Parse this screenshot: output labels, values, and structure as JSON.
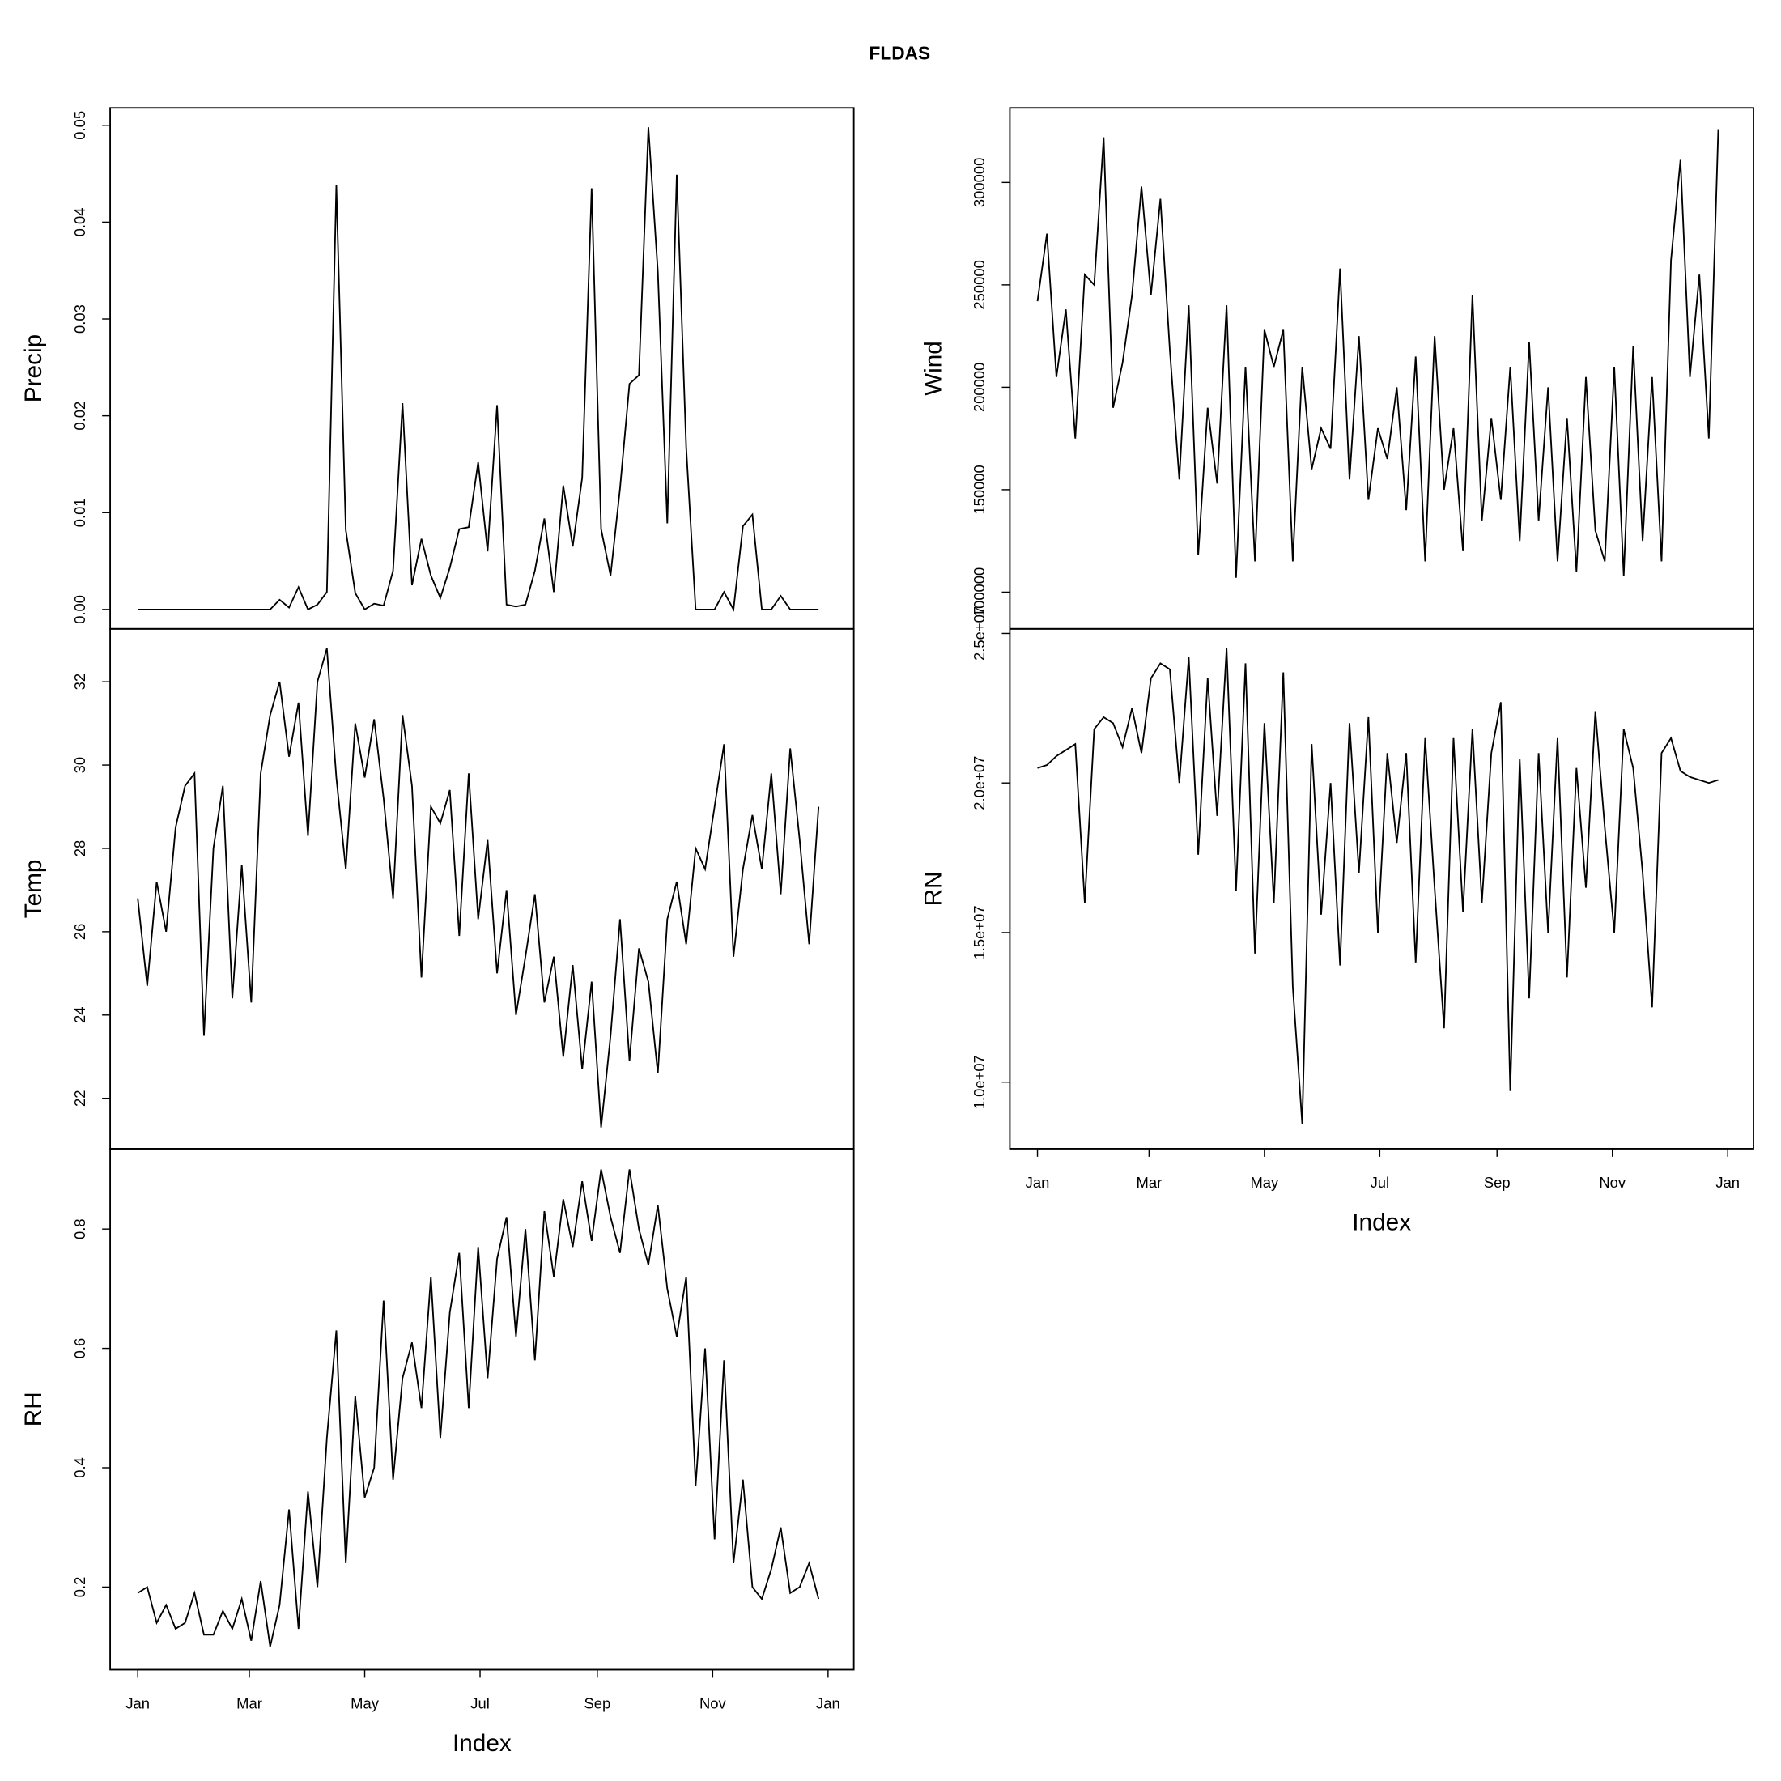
{
  "title": "FLDAS",
  "chart_data": [
    {
      "type": "line",
      "ylabel": "Precip",
      "color": "#000000",
      "x": [
        1,
        6,
        11,
        16,
        21,
        26,
        31,
        36,
        41,
        46,
        51,
        56,
        61,
        66,
        71,
        76,
        81,
        86,
        91,
        96,
        101,
        106,
        111,
        116,
        121,
        126,
        131,
        136,
        141,
        146,
        151,
        156,
        161,
        166,
        171,
        176,
        181,
        186,
        191,
        196,
        201,
        206,
        211,
        216,
        221,
        226,
        231,
        236,
        241,
        246,
        251,
        256,
        261,
        266,
        271,
        276,
        281,
        286,
        291,
        296,
        301,
        306,
        311,
        316,
        321,
        326,
        331,
        336,
        341,
        346,
        351,
        356,
        361
      ],
      "values": [
        0,
        0,
        0,
        0,
        0,
        0,
        0,
        0,
        0,
        0,
        0,
        0,
        0,
        0,
        0,
        0.001,
        0.0002,
        0.0023,
        0,
        0.0005,
        0.0018,
        0.0438,
        0.0082,
        0.0017,
        0,
        0.0006,
        0.0004,
        0.004,
        0.0213,
        0.0025,
        0.0073,
        0.0035,
        0.0012,
        0.0043,
        0.0083,
        0.0085,
        0.0152,
        0.006,
        0.0211,
        0.0005,
        0.0003,
        0.0005,
        0.004,
        0.0094,
        0.0018,
        0.0128,
        0.0065,
        0.0136,
        0.0435,
        0.0083,
        0.0035,
        0.0125,
        0.0233,
        0.0242,
        0.0498,
        0.0349,
        0.0089,
        0.0449,
        0.0167,
        0,
        0,
        0,
        0.0018,
        0,
        0.0086,
        0.0098,
        0,
        0,
        0.0014,
        0,
        0,
        0,
        0
      ],
      "xlim": [
        -13.6,
        379.6
      ],
      "ylim": [
        -0.002,
        0.0518
      ],
      "yticks": [
        {
          "value": 0,
          "label": "0.00"
        },
        {
          "value": 0.01,
          "label": "0.01"
        },
        {
          "value": 0.02,
          "label": "0.02"
        },
        {
          "value": 0.03,
          "label": "0.03"
        },
        {
          "value": 0.04,
          "label": "0.04"
        },
        {
          "value": 0.05,
          "label": "0.05"
        }
      ]
    },
    {
      "type": "line",
      "ylabel": "Temp",
      "color": "#000000",
      "x": [
        1,
        6,
        11,
        16,
        21,
        26,
        31,
        36,
        41,
        46,
        51,
        56,
        61,
        66,
        71,
        76,
        81,
        86,
        91,
        96,
        101,
        106,
        111,
        116,
        121,
        126,
        131,
        136,
        141,
        146,
        151,
        156,
        161,
        166,
        171,
        176,
        181,
        186,
        191,
        196,
        201,
        206,
        211,
        216,
        221,
        226,
        231,
        236,
        241,
        246,
        251,
        256,
        261,
        266,
        271,
        276,
        281,
        286,
        291,
        296,
        301,
        306,
        311,
        316,
        321,
        326,
        331,
        336,
        341,
        346,
        351,
        356,
        361
      ],
      "values": [
        26.8,
        24.7,
        27.2,
        26.0,
        28.5,
        29.5,
        29.8,
        23.5,
        28.0,
        29.5,
        24.4,
        27.6,
        24.3,
        29.8,
        31.2,
        32.0,
        30.2,
        31.5,
        28.3,
        32.0,
        32.8,
        29.7,
        27.5,
        31.0,
        29.7,
        31.1,
        29.2,
        26.8,
        31.2,
        29.5,
        24.9,
        29.0,
        28.6,
        29.4,
        25.9,
        29.8,
        26.3,
        28.2,
        25.0,
        27.0,
        24.0,
        25.4,
        26.9,
        24.3,
        25.4,
        23.0,
        25.2,
        22.7,
        24.8,
        21.3,
        23.5,
        26.3,
        22.9,
        25.6,
        24.8,
        22.6,
        26.3,
        27.2,
        25.7,
        28.0,
        27.5,
        29.0,
        30.5,
        25.4,
        27.5,
        28.8,
        27.5,
        29.8,
        26.9,
        30.4,
        28.2,
        25.7,
        29.0
      ],
      "xlim": [
        -13.6,
        379.6
      ],
      "ylim": [
        20.79,
        33.27
      ],
      "yticks": [
        22,
        24,
        26,
        28,
        30,
        32
      ]
    },
    {
      "type": "line",
      "ylabel": "RH",
      "color": "#000000",
      "xlabel": "Index",
      "x": [
        1,
        6,
        11,
        16,
        21,
        26,
        31,
        36,
        41,
        46,
        51,
        56,
        61,
        66,
        71,
        76,
        81,
        86,
        91,
        96,
        101,
        106,
        111,
        116,
        121,
        126,
        131,
        136,
        141,
        146,
        151,
        156,
        161,
        166,
        171,
        176,
        181,
        186,
        191,
        196,
        201,
        206,
        211,
        216,
        221,
        226,
        231,
        236,
        241,
        246,
        251,
        256,
        261,
        266,
        271,
        276,
        281,
        286,
        291,
        296,
        301,
        306,
        311,
        316,
        321,
        326,
        331,
        336,
        341,
        346,
        351,
        356,
        361
      ],
      "values": [
        0.19,
        0.2,
        0.14,
        0.17,
        0.13,
        0.14,
        0.19,
        0.12,
        0.12,
        0.16,
        0.13,
        0.18,
        0.11,
        0.21,
        0.1,
        0.17,
        0.33,
        0.13,
        0.36,
        0.2,
        0.45,
        0.63,
        0.24,
        0.52,
        0.35,
        0.4,
        0.68,
        0.38,
        0.55,
        0.61,
        0.5,
        0.72,
        0.45,
        0.66,
        0.76,
        0.5,
        0.77,
        0.55,
        0.75,
        0.82,
        0.62,
        0.8,
        0.58,
        0.83,
        0.72,
        0.85,
        0.77,
        0.88,
        0.78,
        0.9,
        0.82,
        0.76,
        0.9,
        0.8,
        0.74,
        0.84,
        0.7,
        0.62,
        0.72,
        0.37,
        0.6,
        0.28,
        0.58,
        0.24,
        0.38,
        0.2,
        0.18,
        0.23,
        0.3,
        0.19,
        0.2,
        0.24,
        0.18
      ],
      "xlim": [
        -13.6,
        379.6
      ],
      "ylim": [
        0.0615,
        0.9346
      ],
      "yticks": [
        0.2,
        0.4,
        0.6,
        0.8
      ],
      "xticks": [
        {
          "value": 1,
          "label": "Jan"
        },
        {
          "value": 60,
          "label": "Mar"
        },
        {
          "value": 121,
          "label": "May"
        },
        {
          "value": 182,
          "label": "Jul"
        },
        {
          "value": 244,
          "label": "Sep"
        },
        {
          "value": 305,
          "label": "Nov"
        },
        {
          "value": 366,
          "label": "Jan"
        }
      ]
    },
    {
      "type": "line",
      "ylabel": "Wind",
      "color": "#000000",
      "x": [
        1,
        6,
        11,
        16,
        21,
        26,
        31,
        36,
        41,
        46,
        51,
        56,
        61,
        66,
        71,
        76,
        81,
        86,
        91,
        96,
        101,
        106,
        111,
        116,
        121,
        126,
        131,
        136,
        141,
        146,
        151,
        156,
        161,
        166,
        171,
        176,
        181,
        186,
        191,
        196,
        201,
        206,
        211,
        216,
        221,
        226,
        231,
        236,
        241,
        246,
        251,
        256,
        261,
        266,
        271,
        276,
        281,
        286,
        291,
        296,
        301,
        306,
        311,
        316,
        321,
        326,
        331,
        336,
        341,
        346,
        351,
        356,
        361
      ],
      "values": [
        242000,
        275000,
        205000,
        238000,
        175000,
        255000,
        250000,
        322000,
        190000,
        212000,
        245000,
        298000,
        245000,
        292000,
        218000,
        155000,
        240000,
        118000,
        190000,
        153000,
        240000,
        107000,
        210000,
        115000,
        228000,
        210000,
        228000,
        115000,
        210000,
        160000,
        180000,
        170000,
        258000,
        155000,
        225000,
        145000,
        180000,
        165000,
        200000,
        140000,
        215000,
        115000,
        225000,
        150000,
        180000,
        120000,
        245000,
        135000,
        185000,
        145000,
        210000,
        125000,
        222000,
        135000,
        200000,
        115000,
        185000,
        110000,
        205000,
        130000,
        115000,
        210000,
        108000,
        220000,
        125000,
        205000,
        115000,
        262000,
        311000,
        205000,
        255000,
        175000,
        326000
      ],
      "xlim": [
        -13.6,
        379.6
      ],
      "ylim": [
        82070,
        336400
      ],
      "yticks": [
        100000,
        150000,
        200000,
        250000,
        300000
      ]
    },
    {
      "type": "line",
      "ylabel": "RN",
      "color": "#000000",
      "xlabel": "Index",
      "x": [
        1,
        6,
        11,
        16,
        21,
        26,
        31,
        36,
        41,
        46,
        51,
        56,
        61,
        66,
        71,
        76,
        81,
        86,
        91,
        96,
        101,
        106,
        111,
        116,
        121,
        126,
        131,
        136,
        141,
        146,
        151,
        156,
        161,
        166,
        171,
        176,
        181,
        186,
        191,
        196,
        201,
        206,
        211,
        216,
        221,
        226,
        231,
        236,
        241,
        246,
        251,
        256,
        261,
        266,
        271,
        276,
        281,
        286,
        291,
        296,
        301,
        306,
        311,
        316,
        321,
        326,
        331,
        336,
        341,
        346,
        351,
        356,
        361
      ],
      "values": [
        20500000,
        20600000,
        20900000,
        21100000,
        21300000,
        16000000,
        21800000,
        22200000,
        22000000,
        21200000,
        22500000,
        21000000,
        23500000,
        24000000,
        23800000,
        20000000,
        24200000,
        17600000,
        23500000,
        18900000,
        24500000,
        16400000,
        24000000,
        14300000,
        22000000,
        16000000,
        23700000,
        13200000,
        8600000,
        21300000,
        15600000,
        20000000,
        13900000,
        22000000,
        17000000,
        22200000,
        15000000,
        21000000,
        18000000,
        21000000,
        14000000,
        21500000,
        16500000,
        11800000,
        21500000,
        15700000,
        21800000,
        16000000,
        21000000,
        22700000,
        9700000,
        20800000,
        12800000,
        21000000,
        15000000,
        21500000,
        13500000,
        20500000,
        16500000,
        22400000,
        18500000,
        15000000,
        21800000,
        20500000,
        17000000,
        12500000,
        21000000,
        21500000,
        20400000,
        20200000,
        20100000,
        20000000,
        20100000
      ],
      "xlim": [
        -13.6,
        379.6
      ],
      "ylim": [
        7774000,
        25153000
      ],
      "yticks": [
        {
          "value": 10000000,
          "label": "1.0e+07"
        },
        {
          "value": 15000000,
          "label": "1.5e+07"
        },
        {
          "value": 20000000,
          "label": "2.0e+07"
        },
        {
          "value": 25000000,
          "label": "2.5e+07"
        }
      ],
      "xticks": [
        {
          "value": 1,
          "label": "Jan"
        },
        {
          "value": 60,
          "label": "Mar"
        },
        {
          "value": 121,
          "label": "May"
        },
        {
          "value": 182,
          "label": "Jul"
        },
        {
          "value": 244,
          "label": "Sep"
        },
        {
          "value": 305,
          "label": "Nov"
        },
        {
          "value": 366,
          "label": "Jan"
        }
      ]
    }
  ]
}
